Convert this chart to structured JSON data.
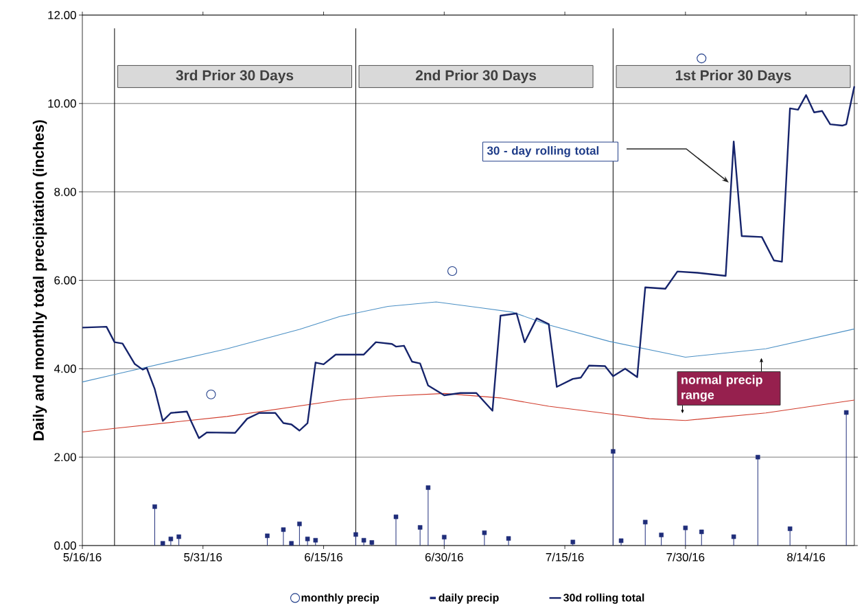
{
  "chart_data": {
    "type": "line",
    "ylabel": "Daily and monthly total precipitation (inches)",
    "xlim": [
      "2016-05-16",
      "2016-08-20"
    ],
    "xticks": [
      {
        "value": "2016-05-16",
        "label": "5/16/16"
      },
      {
        "value": "2016-05-31",
        "label": "5/31/16"
      },
      {
        "value": "2016-06-15",
        "label": "6/15/16"
      },
      {
        "value": "2016-06-30",
        "label": "6/30/16"
      },
      {
        "value": "2016-07-15",
        "label": "7/15/16"
      },
      {
        "value": "2016-07-30",
        "label": "7/30/16"
      },
      {
        "value": "2016-08-14",
        "label": "8/14/16"
      }
    ],
    "ylim": [
      0,
      12
    ],
    "yticks": [
      {
        "value": 0,
        "label": "0.00"
      },
      {
        "value": 2,
        "label": "2.00"
      },
      {
        "value": 4,
        "label": "4.00"
      },
      {
        "value": 6,
        "label": "6.00"
      },
      {
        "value": 8,
        "label": "8.00"
      },
      {
        "value": 10,
        "label": "10.00"
      },
      {
        "value": 12,
        "label": "12.00"
      }
    ],
    "grid": "y",
    "legend": "bottom",
    "series": [
      {
        "type": "line",
        "color": "#4a8fc4",
        "x": [
          "2016-05-16",
          "2016-05-20",
          "2016-06-03",
          "2016-06-12",
          "2016-06-17",
          "2016-06-23",
          "2016-06-29",
          "2016-07-04T12:00",
          "2016-07-08T12:00",
          "2016-07-13",
          "2016-07-20T12:00",
          "2016-07-30",
          "2016-08-09",
          "2016-08-20"
        ],
        "values": [
          3.7,
          3.87,
          4.45,
          4.89,
          5.18,
          5.41,
          5.51,
          5.38,
          5.28,
          4.99,
          4.62,
          4.26,
          4.45,
          4.9
        ]
      },
      {
        "type": "line",
        "color": "#d03a2a",
        "x": [
          "2016-05-16",
          "2016-05-20",
          "2016-06-03",
          "2016-06-17",
          "2016-06-23",
          "2016-06-30",
          "2016-07-07",
          "2016-07-13",
          "2016-07-20T12:00",
          "2016-07-25T12:00",
          "2016-07-30",
          "2016-08-09",
          "2016-08-20"
        ],
        "values": [
          2.57,
          2.65,
          2.92,
          3.29,
          3.38,
          3.44,
          3.34,
          3.15,
          2.98,
          2.87,
          2.83,
          3.0,
          3.29
        ]
      },
      {
        "type": "scatter",
        "name": "monthly precip",
        "color": "#1f3c88",
        "marker": "circle",
        "x": [
          "2016-06-01",
          "2016-07-01",
          "2016-08-01"
        ],
        "values": [
          3.42,
          6.21,
          11.02
        ]
      },
      {
        "type": "lollipop",
        "name": "daily precip",
        "color": "#1f2d7a",
        "marker": "square",
        "x": [
          "2016-05-25",
          "2016-05-26",
          "2016-05-27",
          "2016-05-28",
          "2016-06-08",
          "2016-06-10",
          "2016-06-11",
          "2016-06-12",
          "2016-06-13",
          "2016-06-14",
          "2016-06-19",
          "2016-06-20",
          "2016-06-21",
          "2016-06-24",
          "2016-06-27",
          "2016-06-28",
          "2016-06-30",
          "2016-07-05",
          "2016-07-08",
          "2016-07-16",
          "2016-07-21",
          "2016-07-22",
          "2016-07-25",
          "2016-07-27",
          "2016-07-30",
          "2016-08-01",
          "2016-08-05",
          "2016-08-08",
          "2016-08-12",
          "2016-08-19"
        ],
        "values": [
          0.88,
          0.05,
          0.15,
          0.2,
          0.22,
          0.36,
          0.05,
          0.49,
          0.15,
          0.12,
          0.25,
          0.12,
          0.07,
          0.65,
          0.41,
          1.31,
          0.19,
          0.29,
          0.16,
          0.08,
          2.13,
          0.11,
          0.53,
          0.24,
          0.4,
          0.31,
          0.2,
          2.0,
          0.38,
          3.01
        ]
      },
      {
        "type": "line",
        "name": "30d rolling total",
        "color": "#15236b",
        "x": [
          "2016-05-16",
          "2016-05-19",
          "2016-05-20",
          "2016-05-21",
          "2016-05-22T12:00",
          "2016-05-23T12:00",
          "2016-05-24",
          "2016-05-25",
          "2016-05-26",
          "2016-05-27",
          "2016-05-29",
          "2016-05-29T12:00",
          "2016-05-30T12:00",
          "2016-05-31T12:00",
          "2016-06-04",
          "2016-06-05T12:00",
          "2016-06-07",
          "2016-06-09",
          "2016-06-10",
          "2016-06-11",
          "2016-06-12",
          "2016-06-13",
          "2016-06-14",
          "2016-06-15",
          "2016-06-16T12:00",
          "2016-06-20",
          "2016-06-21T12:00",
          "2016-06-23T12:00",
          "2016-06-24",
          "2016-06-25",
          "2016-06-26",
          "2016-06-27",
          "2016-06-28",
          "2016-06-30",
          "2016-07-02",
          "2016-07-04",
          "2016-07-06",
          "2016-07-07",
          "2016-07-09",
          "2016-07-10",
          "2016-07-11T12:00",
          "2016-07-13",
          "2016-07-14",
          "2016-07-16",
          "2016-07-17",
          "2016-07-18",
          "2016-07-20",
          "2016-07-21",
          "2016-07-22T12:00",
          "2016-07-24",
          "2016-07-25",
          "2016-07-27T12:00",
          "2016-07-29",
          "2016-07-31T12:00",
          "2016-08-04",
          "2016-08-05",
          "2016-08-06",
          "2016-08-08T12:00",
          "2016-08-10",
          "2016-08-11",
          "2016-08-12",
          "2016-08-13",
          "2016-08-14",
          "2016-08-15",
          "2016-08-16",
          "2016-08-17",
          "2016-08-18T12:00",
          "2016-08-19",
          "2016-08-20"
        ],
        "values": [
          4.93,
          4.95,
          4.6,
          4.57,
          4.11,
          3.98,
          4.02,
          3.54,
          2.82,
          3.0,
          3.03,
          2.82,
          2.43,
          2.56,
          2.55,
          2.87,
          3.0,
          3.0,
          2.77,
          2.74,
          2.6,
          2.77,
          4.14,
          4.1,
          4.32,
          4.32,
          4.6,
          4.56,
          4.5,
          4.52,
          4.16,
          4.12,
          3.62,
          3.4,
          3.45,
          3.45,
          3.05,
          5.2,
          5.25,
          4.6,
          5.14,
          5.01,
          3.59,
          3.77,
          3.8,
          4.07,
          4.06,
          3.83,
          4.0,
          3.81,
          5.84,
          5.81,
          6.2,
          6.17,
          6.1,
          9.14,
          7.0,
          6.98,
          6.45,
          6.42,
          9.89,
          9.86,
          10.19,
          9.8,
          9.83,
          9.53,
          9.5,
          9.53,
          10.39
        ]
      }
    ],
    "ref_lines": [
      {
        "axis": "x",
        "value": "2016-05-20",
        "color": "#000000"
      },
      {
        "axis": "x",
        "value": "2016-06-19",
        "color": "#000000"
      },
      {
        "axis": "x",
        "value": "2016-07-21",
        "color": "#000000"
      }
    ],
    "annotations": [
      "3rd Prior 30 Days",
      "2nd Prior 30 Days",
      "1st  Prior 30 Days",
      "30 - day rolling total",
      "normal precip range"
    ]
  }
}
